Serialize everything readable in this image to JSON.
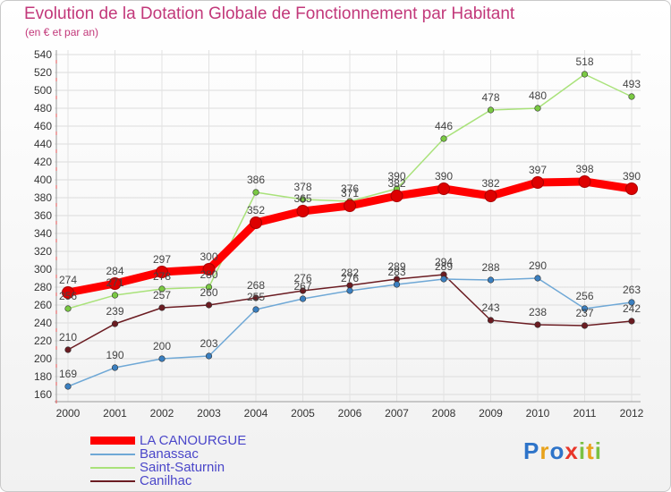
{
  "chart_data": {
    "type": "line",
    "title": "Evolution de la Dotation Globale de Fonctionnement par Habitant",
    "subtitle": "(en € et par an)",
    "categories": [
      "2000",
      "2001",
      "2002",
      "2003",
      "2004",
      "2005",
      "2006",
      "2007",
      "2008",
      "2009",
      "2010",
      "2011",
      "2012"
    ],
    "ylim": [
      160,
      540
    ],
    "yticks": [
      160,
      180,
      200,
      220,
      240,
      260,
      280,
      300,
      320,
      340,
      360,
      380,
      400,
      420,
      440,
      460,
      480,
      500,
      520,
      540
    ],
    "grid": true,
    "legend_position": "bottom-left",
    "series": [
      {
        "name": "Canilhac",
        "color": "#6b1c22",
        "marker": "#6b1c22",
        "values": [
          210,
          239,
          257,
          260,
          268,
          276,
          282,
          289,
          294,
          243,
          238,
          237,
          242
        ]
      },
      {
        "name": "Banassac",
        "color": "#6fa8d6",
        "marker": "#3a7fc0",
        "values": [
          169,
          190,
          200,
          203,
          255,
          267,
          276,
          283,
          289,
          288,
          290,
          256,
          263
        ]
      },
      {
        "name": "Saint-Saturnin",
        "color": "#a9e27a",
        "marker": "#7ac943",
        "values": [
          256,
          271,
          278,
          280,
          386,
          378,
          376,
          390,
          446,
          478,
          480,
          518,
          493
        ]
      },
      {
        "name": "LA CANOURGUE",
        "color": "#ff0000",
        "marker": "#dd0000",
        "values": [
          274,
          284,
          297,
          300,
          352,
          365,
          371,
          382,
          390,
          382,
          397,
          398,
          390
        ]
      }
    ],
    "legend_order": [
      "LA CANOURGUE",
      "Banassac",
      "Saint-Saturnin",
      "Canilhac"
    ]
  },
  "brand": {
    "letters": [
      "P",
      "r",
      "o",
      "x",
      "i",
      "t",
      "i"
    ],
    "colors": [
      "#2e74c9",
      "#e8a21b",
      "#2e74c9",
      "#e8362a",
      "#7ac143",
      "#e8a21b",
      "#7ac143"
    ]
  }
}
